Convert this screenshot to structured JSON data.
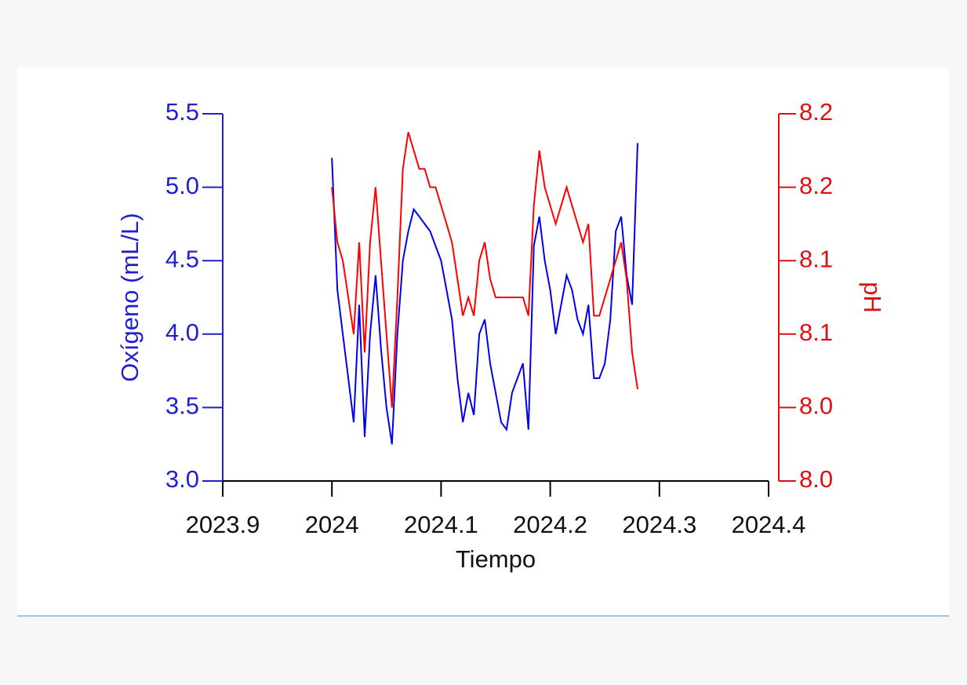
{
  "chart_data": {
    "type": "line",
    "xlabel": "Tiempo",
    "ylabel": "Oxígeno (mL/L)",
    "y2label": "pH",
    "x": [
      2024,
      2024.005,
      2024.01,
      2024.015,
      2024.02,
      2024.025,
      2024.03,
      2024.035,
      2024.04,
      2024.045,
      2024.05,
      2024.055,
      2024.06,
      2024.065,
      2024.07,
      2024.075,
      2024.08,
      2024.085,
      2024.09,
      2024.095,
      2024.1,
      2024.105,
      2024.11,
      2024.115,
      2024.12,
      2024.125,
      2024.13,
      2024.135,
      2024.14,
      2024.145,
      2024.15,
      2024.155,
      2024.16,
      2024.165,
      2024.17,
      2024.175,
      2024.18,
      2024.185,
      2024.19,
      2024.195,
      2024.2,
      2024.205,
      2024.21,
      2024.215,
      2024.22,
      2024.225,
      2024.23,
      2024.235,
      2024.24,
      2024.245,
      2024.25,
      2024.255,
      2024.26,
      2024.265,
      2024.27,
      2024.275,
      2024.28
    ],
    "series": [
      {
        "name": "Oxígeno",
        "color": "#0000ee",
        "values": [
          5.2,
          4.3,
          4.0,
          3.7,
          3.4,
          4.2,
          3.3,
          4.0,
          4.4,
          3.9,
          3.5,
          3.25,
          4.0,
          4.5,
          4.7,
          4.85,
          4.8,
          4.75,
          4.7,
          4.6,
          4.5,
          4.3,
          4.1,
          3.7,
          3.4,
          3.6,
          3.45,
          4.0,
          4.1,
          3.8,
          3.6,
          3.4,
          3.35,
          3.6,
          3.7,
          3.8,
          3.35,
          4.6,
          4.8,
          4.5,
          4.3,
          4.0,
          4.2,
          4.4,
          4.3,
          4.1,
          4.0,
          4.2,
          3.7,
          3.7,
          3.8,
          4.1,
          4.7,
          4.8,
          4.4,
          4.2,
          5.3
        ]
      },
      {
        "name": "pH",
        "color": "#ff0000",
        "axis": "y2",
        "values": [
          8.16,
          8.13,
          8.12,
          8.1,
          8.08,
          8.13,
          8.07,
          8.13,
          8.16,
          8.12,
          8.08,
          8.04,
          8.1,
          8.17,
          8.19,
          8.18,
          8.17,
          8.17,
          8.16,
          8.16,
          8.15,
          8.14,
          8.13,
          8.11,
          8.09,
          8.1,
          8.09,
          8.12,
          8.13,
          8.11,
          8.1,
          8.1,
          8.1,
          8.1,
          8.1,
          8.1,
          8.09,
          8.15,
          8.18,
          8.16,
          8.15,
          8.14,
          8.15,
          8.16,
          8.15,
          8.14,
          8.13,
          8.14,
          8.09,
          8.09,
          8.1,
          8.11,
          8.12,
          8.13,
          8.11,
          8.07,
          8.05
        ]
      }
    ],
    "xlim": [
      2023.9,
      2024.4
    ],
    "xticks": [
      2023.9,
      2024,
      2024.1,
      2024.2,
      2024.3,
      2024.4
    ],
    "ylim": [
      3.0,
      5.5
    ],
    "yticks": [
      {
        "value": 3.0,
        "label": "3.0"
      },
      3.5,
      {
        "value": 4.0,
        "label": "4.0"
      },
      4.5,
      {
        "value": 5.0,
        "label": "5.0"
      },
      5.5
    ],
    "y2lim": [
      8.0,
      8.2
    ],
    "y2ticks": [
      {
        "value": 8.0,
        "label": "8.0"
      },
      {
        "value": 8.04,
        "label": "8.0"
      },
      {
        "value": 8.08,
        "label": "8.1"
      },
      {
        "value": 8.12,
        "label": "8.1"
      },
      {
        "value": 8.16,
        "label": "8.2"
      },
      {
        "value": 8.2,
        "label": "8.2"
      }
    ],
    "y_color": "#2020cc",
    "y2_color": "#dd1111"
  }
}
